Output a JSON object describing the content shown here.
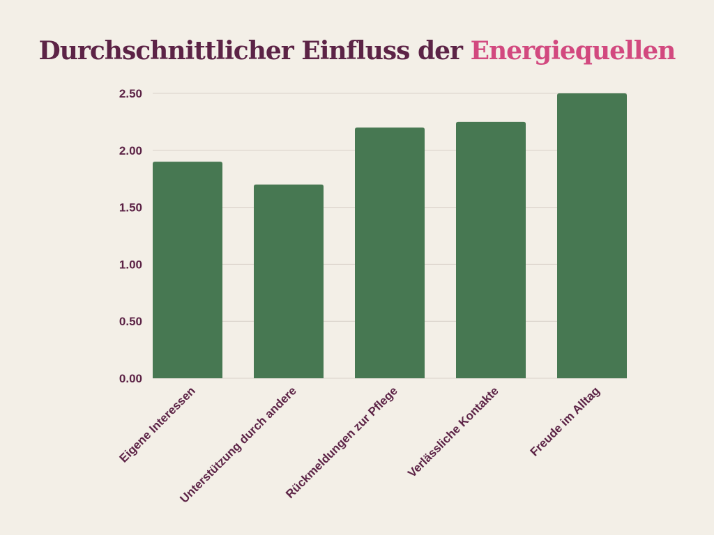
{
  "chart_data": {
    "type": "bar",
    "title": "Durchschnittlicher Einfluss der",
    "title_highlight": "Energiequellen",
    "categories": [
      "Eigene Interessen",
      "Unterstützung durch andere",
      "Rückmeldungen zur Pflege",
      "Verlässliche Kontakte",
      "Freude im Alltag"
    ],
    "values": [
      1.9,
      1.7,
      2.2,
      2.25,
      2.5
    ],
    "ylim": [
      0,
      2.5
    ],
    "yticks": [
      "0.00",
      "0.50",
      "1.00",
      "1.50",
      "2.00",
      "2.50"
    ],
    "xlabel": "",
    "ylabel": "",
    "grid": true,
    "colors": {
      "bar": "#477852",
      "title": "#5c2346",
      "highlight": "#d2497f",
      "grid": "#d8d0c8",
      "background": "#f3efe7"
    }
  }
}
